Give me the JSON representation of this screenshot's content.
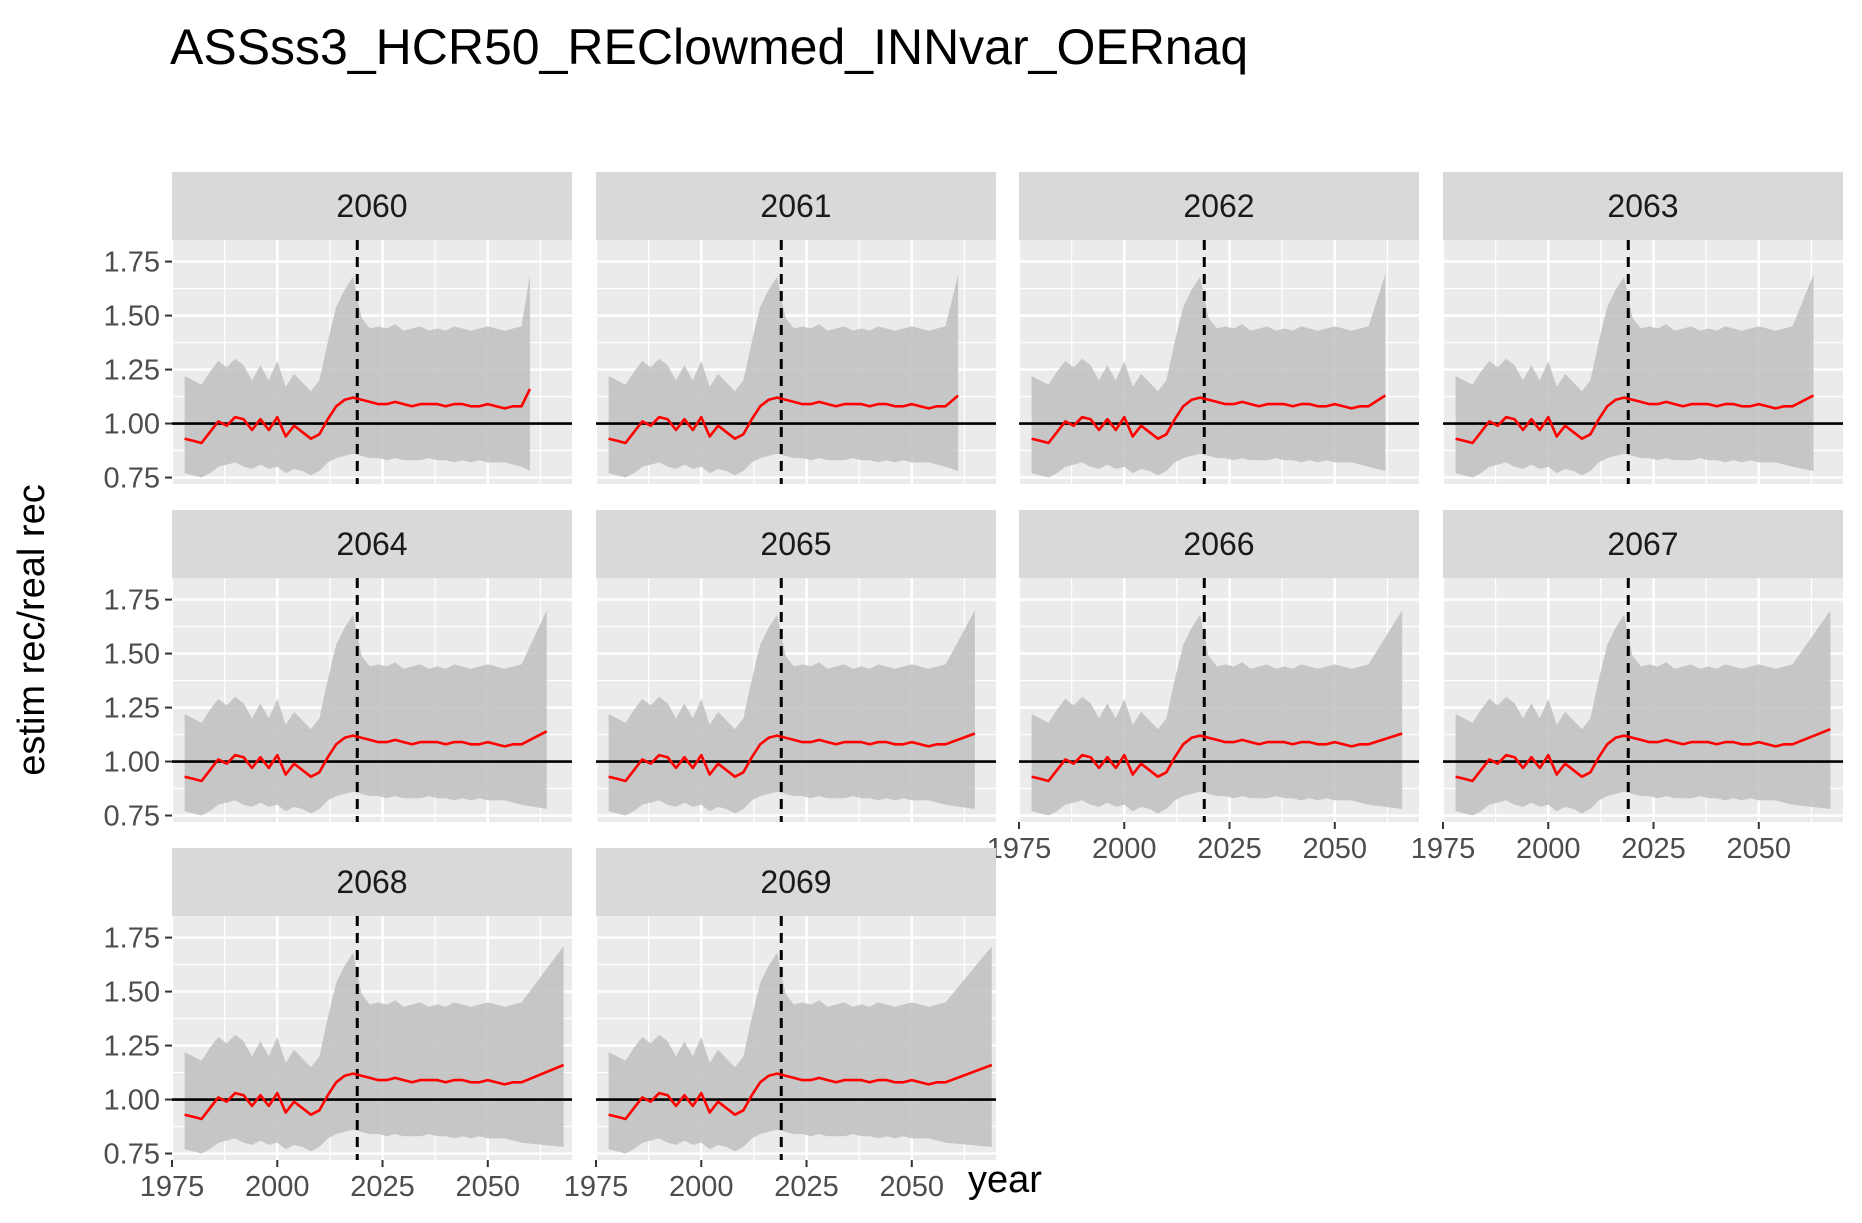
{
  "chart_data": {
    "type": "line",
    "layout": "facet_wrap",
    "title": "ASSss3_HCR50_REClowmed_INNvar_OERnaq",
    "xlabel": "year",
    "ylabel": "estim rec/real rec",
    "xlim": [
      1975,
      2070
    ],
    "ylim": [
      0.72,
      1.85
    ],
    "x_ticks": [
      1975,
      2000,
      2025,
      2050
    ],
    "x_tick_labels": [
      "1975",
      "2000",
      "2025",
      "2050"
    ],
    "y_ticks": [
      0.75,
      1.0,
      1.25,
      1.5,
      1.75
    ],
    "y_tick_labels": [
      "0.75",
      "1.00",
      "1.25",
      "1.50",
      "1.75"
    ],
    "grid": true,
    "hline_y": 1.0,
    "vline_x": 2019,
    "colors": {
      "line": "#ff0000",
      "ribbon": "#bfbfbf",
      "panel_bg": "#ebebeb",
      "strip_bg": "#d9d9d9",
      "grid": "#ffffff",
      "reference": "#000000"
    },
    "base_series": {
      "x": [
        1978,
        1980,
        1982,
        1984,
        1986,
        1988,
        1990,
        1992,
        1994,
        1996,
        1998,
        2000,
        2002,
        2004,
        2006,
        2008,
        2010,
        2012,
        2014,
        2016,
        2018,
        2020,
        2022,
        2024,
        2026,
        2028,
        2030,
        2032,
        2034,
        2036,
        2038,
        2040,
        2042,
        2044,
        2046,
        2048,
        2050,
        2052,
        2054,
        2056,
        2058
      ],
      "median": [
        0.93,
        0.92,
        0.91,
        0.96,
        1.01,
        0.99,
        1.03,
        1.02,
        0.97,
        1.02,
        0.97,
        1.03,
        0.94,
        0.99,
        0.96,
        0.93,
        0.95,
        1.02,
        1.08,
        1.11,
        1.12,
        1.11,
        1.1,
        1.09,
        1.09,
        1.1,
        1.09,
        1.08,
        1.09,
        1.09,
        1.09,
        1.08,
        1.09,
        1.09,
        1.08,
        1.08,
        1.09,
        1.08,
        1.07,
        1.08,
        1.08
      ],
      "lower": [
        0.77,
        0.76,
        0.75,
        0.77,
        0.8,
        0.81,
        0.82,
        0.8,
        0.79,
        0.81,
        0.79,
        0.8,
        0.77,
        0.79,
        0.78,
        0.76,
        0.78,
        0.82,
        0.84,
        0.85,
        0.86,
        0.85,
        0.84,
        0.84,
        0.83,
        0.84,
        0.83,
        0.83,
        0.83,
        0.84,
        0.83,
        0.83,
        0.82,
        0.83,
        0.82,
        0.83,
        0.82,
        0.82,
        0.82,
        0.81,
        0.8
      ],
      "upper": [
        1.22,
        1.2,
        1.18,
        1.24,
        1.29,
        1.26,
        1.3,
        1.27,
        1.2,
        1.27,
        1.2,
        1.29,
        1.17,
        1.23,
        1.19,
        1.15,
        1.2,
        1.38,
        1.54,
        1.62,
        1.68,
        1.49,
        1.44,
        1.45,
        1.44,
        1.46,
        1.43,
        1.44,
        1.45,
        1.43,
        1.44,
        1.43,
        1.45,
        1.44,
        1.43,
        1.44,
        1.45,
        1.44,
        1.43,
        1.44,
        1.45
      ]
    },
    "panels": [
      {
        "label": "2060",
        "end_year": 2060,
        "end_median": 1.16,
        "end_upper": 1.69,
        "end_lower": 0.78
      },
      {
        "label": "2061",
        "end_year": 2061,
        "end_median": 1.13,
        "end_upper": 1.69,
        "end_lower": 0.78
      },
      {
        "label": "2062",
        "end_year": 2062,
        "end_median": 1.13,
        "end_upper": 1.69,
        "end_lower": 0.78
      },
      {
        "label": "2063",
        "end_year": 2063,
        "end_median": 1.13,
        "end_upper": 1.69,
        "end_lower": 0.78
      },
      {
        "label": "2064",
        "end_year": 2064,
        "end_median": 1.14,
        "end_upper": 1.7,
        "end_lower": 0.78
      },
      {
        "label": "2065",
        "end_year": 2065,
        "end_median": 1.13,
        "end_upper": 1.7,
        "end_lower": 0.78
      },
      {
        "label": "2066",
        "end_year": 2066,
        "end_median": 1.13,
        "end_upper": 1.7,
        "end_lower": 0.78
      },
      {
        "label": "2067",
        "end_year": 2067,
        "end_median": 1.15,
        "end_upper": 1.7,
        "end_lower": 0.78
      },
      {
        "label": "2068",
        "end_year": 2068,
        "end_median": 1.16,
        "end_upper": 1.71,
        "end_lower": 0.78
      },
      {
        "label": "2069",
        "end_year": 2069,
        "end_median": 1.16,
        "end_upper": 1.71,
        "end_lower": 0.78
      }
    ]
  }
}
